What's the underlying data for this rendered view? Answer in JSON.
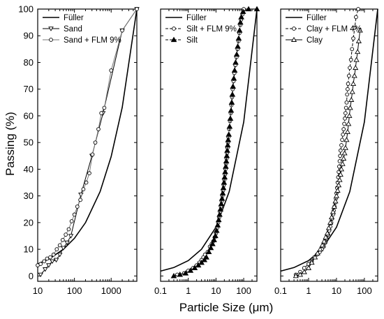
{
  "ylabel": "Passing (%)",
  "xlabel": "Particle Size (μm)",
  "colors": {
    "line": "#000000",
    "marker_fill": "#ffffff",
    "gray_line": "#777777"
  },
  "chart_data": [
    {
      "type": "line",
      "x_scale": "log",
      "xlim": [
        10,
        5000
      ],
      "ylim": [
        -2,
        100
      ],
      "x_ticks": [
        {
          "v": 10,
          "label": "10"
        },
        {
          "v": 100,
          "label": "100"
        },
        {
          "v": 1000,
          "label": "1000"
        }
      ],
      "y_ticks": [
        0,
        10,
        20,
        30,
        40,
        50,
        60,
        70,
        80,
        90,
        100
      ],
      "legend_position": "top-left",
      "series": [
        {
          "name": "Füller",
          "marker": "none",
          "x": [
            10,
            20,
            50,
            100,
            200,
            500,
            1000,
            2000,
            5000
          ],
          "y": [
            4.5,
            6.3,
            10.0,
            14.1,
            20.0,
            31.6,
            44.7,
            63.2,
            100
          ]
        },
        {
          "name": "Sand",
          "marker": "triangle-down",
          "x": [
            12,
            16,
            20,
            25,
            32,
            40,
            50,
            63,
            80,
            150,
            300,
            600,
            2000,
            5000
          ],
          "y": [
            0.5,
            2.5,
            4,
            5.5,
            6,
            8,
            10.5,
            12.5,
            15,
            30.5,
            45,
            61,
            92,
            100
          ]
        },
        {
          "name": "Sand + FLM 9%",
          "marker": "circle",
          "x": [
            10,
            12,
            15,
            18,
            22,
            27,
            33,
            40,
            48,
            58,
            70,
            84,
            100,
            120,
            145,
            175,
            210,
            255,
            310,
            370,
            450,
            540,
            650,
            1000,
            2000,
            5000
          ],
          "y": [
            4,
            4.5,
            5.5,
            6.5,
            7,
            8,
            10,
            11.5,
            13.5,
            15.5,
            17.5,
            20.5,
            23,
            26,
            28.5,
            32.5,
            35,
            38.5,
            45.5,
            50,
            55,
            61,
            63,
            77,
            92,
            100
          ]
        }
      ]
    },
    {
      "type": "line",
      "x_scale": "log",
      "xlim": [
        0.1,
        300
      ],
      "ylim": [
        -2,
        100
      ],
      "x_ticks": [
        {
          "v": 0.1,
          "label": "0.1"
        },
        {
          "v": 1,
          "label": "1"
        },
        {
          "v": 10,
          "label": "10"
        },
        {
          "v": 100,
          "label": "100"
        }
      ],
      "y_ticks": [
        0,
        10,
        20,
        30,
        40,
        50,
        60,
        70,
        80,
        90,
        100
      ],
      "legend_position": "top-left",
      "series": [
        {
          "name": "Füller",
          "marker": "none",
          "x": [
            0.1,
            0.3,
            1,
            3,
            10,
            30,
            100,
            300
          ],
          "y": [
            1.83,
            3.16,
            5.77,
            10,
            18.3,
            31.6,
            57.7,
            100
          ]
        },
        {
          "name": "Silt + FLM 9%",
          "marker": "circle",
          "x": [
            0.4,
            0.7,
            1,
            1.5,
            2,
            2.5,
            3,
            3.5,
            4,
            5,
            6,
            7,
            8,
            9,
            10,
            11,
            12,
            13,
            14,
            15,
            16,
            17,
            18,
            19,
            20,
            21,
            22,
            23,
            24,
            25,
            26,
            27,
            28,
            30,
            32,
            34,
            36,
            38,
            40,
            43,
            46,
            50,
            55,
            60,
            65,
            70,
            75,
            80,
            90,
            100
          ],
          "y": [
            0.5,
            1,
            2,
            3,
            4,
            5,
            6,
            7,
            8,
            9,
            11,
            12,
            13,
            14.5,
            16,
            18,
            20,
            22,
            24,
            26,
            28,
            30,
            32,
            34,
            36,
            38,
            40,
            42,
            44,
            46,
            48,
            50,
            52,
            55,
            58,
            61,
            64,
            67,
            70,
            73,
            76,
            79,
            82,
            85,
            88,
            91,
            94,
            96,
            98,
            100
          ]
        },
        {
          "name": "Silt",
          "marker": "triangle-up-filled",
          "x": [
            0.3,
            0.5,
            0.8,
            1.2,
            1.7,
            2.3,
            3,
            3.8,
            4.5,
            5.5,
            6.5,
            7.5,
            8.5,
            9.5,
            10.5,
            11.5,
            12.5,
            13.5,
            14.5,
            15.5,
            16.5,
            17.5,
            18.5,
            19.5,
            20.5,
            21.5,
            22.5,
            23.5,
            24.5,
            25.5,
            26.5,
            27.5,
            29,
            31,
            33,
            35,
            37,
            39,
            41,
            44,
            47,
            51,
            56,
            61,
            66,
            71,
            76,
            82,
            95,
            150,
            300
          ],
          "y": [
            0,
            0.5,
            1,
            2,
            3,
            4,
            5,
            6,
            7,
            9,
            10.5,
            12,
            13.5,
            15,
            17,
            19,
            21,
            23,
            25,
            27,
            29,
            31,
            33,
            35,
            37,
            39,
            41,
            43,
            45,
            47,
            49,
            51,
            53,
            56,
            59,
            62,
            65,
            68,
            71,
            74,
            77,
            80,
            83,
            86,
            89,
            92,
            95,
            97,
            99,
            100,
            100
          ]
        }
      ]
    },
    {
      "type": "line",
      "x_scale": "log",
      "xlim": [
        0.1,
        300
      ],
      "ylim": [
        -2,
        100
      ],
      "x_ticks": [
        {
          "v": 0.1,
          "label": "0.1"
        },
        {
          "v": 1,
          "label": "1"
        },
        {
          "v": 10,
          "label": "10"
        },
        {
          "v": 100,
          "label": "100"
        }
      ],
      "y_ticks": [
        0,
        10,
        20,
        30,
        40,
        50,
        60,
        70,
        80,
        90,
        100
      ],
      "legend_position": "top-left",
      "series": [
        {
          "name": "Füller",
          "marker": "none",
          "x": [
            0.1,
            0.3,
            1,
            3,
            10,
            30,
            100,
            300
          ],
          "y": [
            1.83,
            3.16,
            5.77,
            10,
            18.3,
            31.6,
            57.7,
            100
          ]
        },
        {
          "name": "Clay + FLM 4%",
          "marker": "circle",
          "x": [
            0.35,
            0.5,
            0.7,
            1,
            1.3,
            1.6,
            2,
            2.5,
            3,
            3.5,
            4,
            4.5,
            5,
            5.5,
            6,
            6.5,
            7,
            7.5,
            8,
            8.5,
            9,
            9.5,
            10,
            10.5,
            11,
            11.5,
            12,
            12.5,
            13,
            13.5,
            14,
            15,
            16,
            17,
            18,
            19,
            20,
            21,
            22,
            23,
            24,
            25,
            26,
            28,
            30,
            33,
            36,
            40,
            45,
            50,
            60
          ],
          "y": [
            0.5,
            1.5,
            3,
            4.5,
            5.5,
            7,
            8,
            9,
            10,
            11,
            12.5,
            14,
            15.5,
            17,
            18.5,
            20,
            21.5,
            23,
            24.5,
            26,
            27.5,
            29,
            31,
            33,
            35,
            37,
            39,
            41,
            43,
            45,
            47,
            49,
            51,
            53,
            55,
            57,
            59,
            61,
            63,
            65,
            68,
            70,
            72,
            75,
            78,
            81,
            85,
            89,
            93,
            97,
            100
          ]
        },
        {
          "name": "Clay",
          "marker": "triangle-up",
          "x": [
            0.35,
            0.5,
            0.7,
            1,
            1.3,
            1.7,
            2.1,
            2.6,
            3.1,
            3.6,
            4.1,
            4.7,
            5.3,
            6,
            6.7,
            7.5,
            8.3,
            9.2,
            10,
            11,
            12,
            13,
            14,
            15,
            16.5,
            18,
            19.5,
            21,
            23,
            25,
            27,
            29,
            31,
            34,
            37,
            40,
            44,
            48,
            52,
            57,
            63,
            70
          ],
          "y": [
            0,
            0.5,
            1.5,
            3,
            5,
            7,
            8.5,
            10,
            11.5,
            13,
            14.5,
            16,
            18,
            20,
            22,
            24,
            26,
            28,
            30,
            32,
            34,
            36,
            38,
            40,
            42,
            44,
            46,
            48,
            51,
            54,
            57,
            60,
            63,
            66,
            69,
            72,
            75,
            78,
            81,
            84,
            88,
            92
          ]
        }
      ]
    }
  ]
}
